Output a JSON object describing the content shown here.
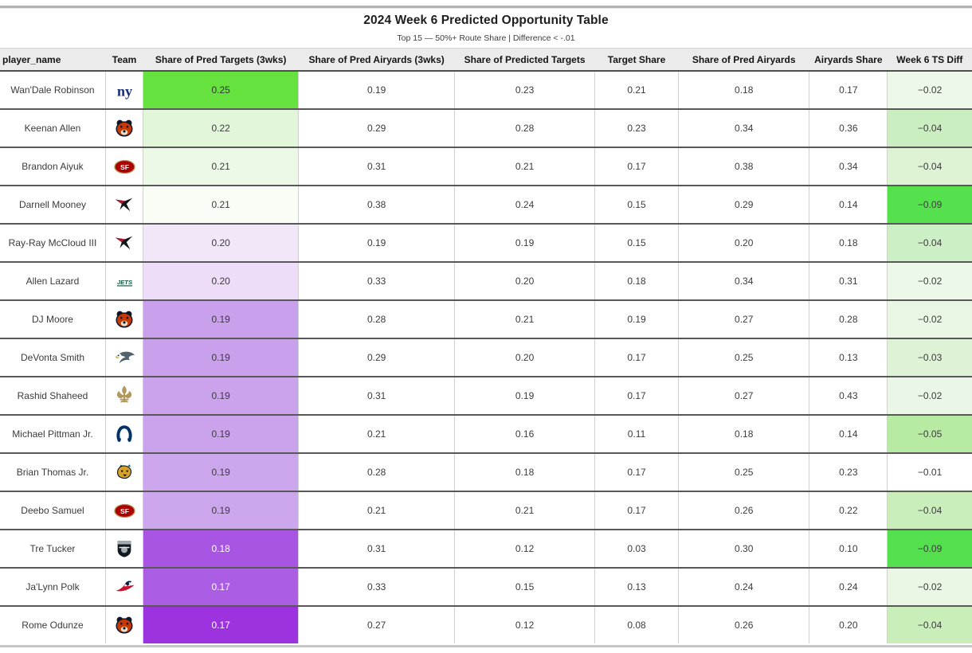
{
  "chart_data": {
    "type": "table",
    "title": "2024 Week 6 Predicted Opportunity Table",
    "subtitle": "Top 15 — 50%+ Route Share | Difference < -.01",
    "columns": [
      "player_name",
      "Team",
      "Share of Pred Targets (3wks)",
      "Share of Pred Airyards (3wks)",
      "Share of Predicted Targets",
      "Target Share",
      "Share of Pred Airyards",
      "Airyards Share",
      "Week 6 TS Diff"
    ],
    "legend_note": "Share of Pred Targets column is heat-colored green (high) to purple (low); Week 6 TS Diff column is heat-colored green by magnitude",
    "rows": [
      {
        "player_name": "Wan'Dale Robinson",
        "team_icon": "giants-logo",
        "values": [
          0.25,
          0.19,
          0.23,
          0.21,
          0.18,
          0.17
        ],
        "week6_ts_diff": -0.02,
        "pred_targets_bg": "#65e23e",
        "pred_targets_text": "#333333",
        "ts_diff_bg": "#edf8e8"
      },
      {
        "player_name": "Keenan Allen",
        "team_icon": "bears-logo",
        "values": [
          0.22,
          0.29,
          0.28,
          0.23,
          0.34,
          0.36
        ],
        "week6_ts_diff": -0.04,
        "pred_targets_bg": "#e2f6da",
        "pred_targets_text": "#3b3b3b",
        "ts_diff_bg": "#cbeec0"
      },
      {
        "player_name": "Brandon Aiyuk",
        "team_icon": "niners-logo",
        "values": [
          0.21,
          0.31,
          0.21,
          0.17,
          0.38,
          0.34
        ],
        "week6_ts_diff": -0.04,
        "pred_targets_bg": "#ecf9e6",
        "pred_targets_text": "#3b3b3b",
        "ts_diff_bg": "#ddf3d4"
      },
      {
        "player_name": "Darnell Mooney",
        "team_icon": "falcons-logo",
        "values": [
          0.21,
          0.38,
          0.24,
          0.15,
          0.29,
          0.14
        ],
        "week6_ts_diff": -0.09,
        "pred_targets_bg": "#f8fdf6",
        "pred_targets_text": "#3b3b3b",
        "ts_diff_bg": "#55e14e"
      },
      {
        "player_name": "Ray-Ray McCloud III",
        "team_icon": "falcons-logo",
        "values": [
          0.2,
          0.19,
          0.19,
          0.15,
          0.2,
          0.18
        ],
        "week6_ts_diff": -0.04,
        "pred_targets_bg": "#f2e6f9",
        "pred_targets_text": "#3b3b3b",
        "ts_diff_bg": "#cdefc5"
      },
      {
        "player_name": "Allen Lazard",
        "team_icon": "jets-logo",
        "values": [
          0.2,
          0.33,
          0.2,
          0.18,
          0.34,
          0.31
        ],
        "week6_ts_diff": -0.02,
        "pred_targets_bg": "#eeddf8",
        "pred_targets_text": "#3b3b3b",
        "ts_diff_bg": "#ecf8e8"
      },
      {
        "player_name": "DJ Moore",
        "team_icon": "bears-logo",
        "values": [
          0.19,
          0.28,
          0.21,
          0.19,
          0.27,
          0.28
        ],
        "week6_ts_diff": -0.02,
        "pred_targets_bg": "#c9a0ec",
        "pred_targets_text": "#3b3b3b",
        "ts_diff_bg": "#eaf6e4"
      },
      {
        "player_name": "DeVonta Smith",
        "team_icon": "eagles-logo",
        "values": [
          0.19,
          0.29,
          0.2,
          0.17,
          0.25,
          0.13
        ],
        "week6_ts_diff": -0.03,
        "pred_targets_bg": "#c9a0ec",
        "pred_targets_text": "#3b3b3b",
        "ts_diff_bg": "#def3d6"
      },
      {
        "player_name": "Rashid Shaheed",
        "team_icon": "saints-logo",
        "values": [
          0.19,
          0.31,
          0.19,
          0.17,
          0.27,
          0.43
        ],
        "week6_ts_diff": -0.02,
        "pred_targets_bg": "#cba3ed",
        "pred_targets_text": "#3b3b3b",
        "ts_diff_bg": "#eaf7e6"
      },
      {
        "player_name": "Michael Pittman Jr.",
        "team_icon": "colts-logo",
        "values": [
          0.19,
          0.21,
          0.16,
          0.11,
          0.18,
          0.14
        ],
        "week6_ts_diff": -0.05,
        "pred_targets_bg": "#cba3ed",
        "pred_targets_text": "#3b3b3b",
        "ts_diff_bg": "#b7eaa3"
      },
      {
        "player_name": "Brian Thomas Jr.",
        "team_icon": "jaguars-logo",
        "values": [
          0.19,
          0.28,
          0.18,
          0.17,
          0.25,
          0.23
        ],
        "week6_ts_diff": -0.01,
        "pred_targets_bg": "#cda7ee",
        "pred_targets_text": "#3b3b3b",
        "ts_diff_bg": "#ffffff"
      },
      {
        "player_name": "Deebo Samuel",
        "team_icon": "niners-logo",
        "values": [
          0.19,
          0.21,
          0.21,
          0.17,
          0.26,
          0.22
        ],
        "week6_ts_diff": -0.04,
        "pred_targets_bg": "#cda7ee",
        "pred_targets_text": "#3b3b3b",
        "ts_diff_bg": "#c9eebb"
      },
      {
        "player_name": "Tre Tucker",
        "team_icon": "raiders-logo",
        "values": [
          0.18,
          0.31,
          0.12,
          0.03,
          0.3,
          0.1
        ],
        "week6_ts_diff": -0.09,
        "pred_targets_bg": "#a855e3",
        "pred_targets_text": "#ffffff",
        "ts_diff_bg": "#54e04e"
      },
      {
        "player_name": "Ja'Lynn Polk",
        "team_icon": "patriots-logo",
        "values": [
          0.17,
          0.33,
          0.15,
          0.13,
          0.24,
          0.24
        ],
        "week6_ts_diff": -0.02,
        "pred_targets_bg": "#ab5de4",
        "pred_targets_text": "#ffffff",
        "ts_diff_bg": "#e9f7e4"
      },
      {
        "player_name": "Rome Odunze",
        "team_icon": "bears-logo",
        "values": [
          0.17,
          0.27,
          0.12,
          0.08,
          0.26,
          0.2
        ],
        "week6_ts_diff": -0.04,
        "pred_targets_bg": "#9d32df",
        "pred_targets_text": "#ffffff",
        "ts_diff_bg": "#c9eeba"
      }
    ]
  }
}
